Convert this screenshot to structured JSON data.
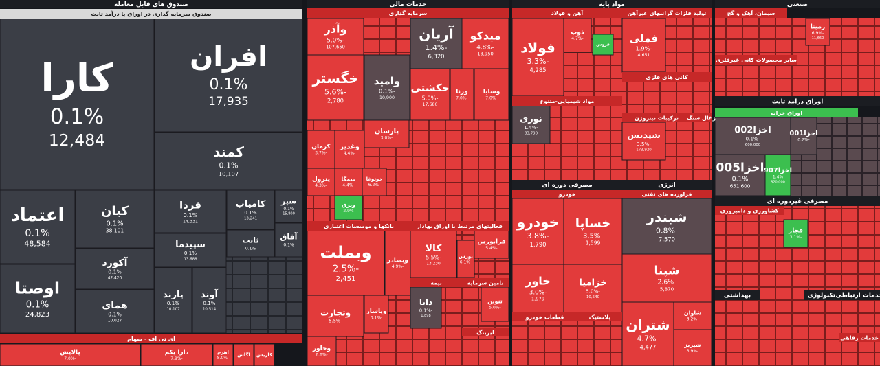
{
  "headers": [
    "صندوق های قابل معامله",
    "صندوق سرمایه گذاری در اوراق با درآمد ثابت",
    "ای تی اف - سهام",
    "خدمات مالی",
    "سرمایه گذاری",
    "بانکها و موسسات اعتباری",
    "فعالیتهای مرتبط با اوراق بهادار",
    "بیمه",
    "تامین سرمایه",
    "لیزینگ",
    "مواد پایه",
    "آهن و فولاد",
    "تولید فلزات گرانبهای غیرآهن",
    "کانی های فلزی",
    "مواد شیمیایی-متنوع",
    "ترکیبات نیتروژن",
    "زغال سنگ",
    "مصرفی دوره ای",
    "خودرو",
    "قطعات خودرو",
    "پلاستیک",
    "انرژی",
    "فراورده های نفتی",
    "صنعتی",
    "سیمان، آهک و گچ",
    "سایر محصولات کانی غیرفلزی",
    "اوراق درآمد ثابت",
    "اوراق خزانه",
    "مصرفی غیردوره ای",
    "کشاورزی و دامپروری",
    "بهداشتی",
    "تکنولوژی",
    "خدمات ارتباطی",
    "خدمات رفاهی"
  ],
  "tiles": [
    {
      "name": "کارا",
      "change": "0.1%",
      "value": "12,484"
    },
    {
      "name": "افران",
      "change": "0.1%",
      "value": "17,935"
    },
    {
      "name": "کمند",
      "change": "0.1%",
      "value": "10,107"
    },
    {
      "name": "اعتماد",
      "change": "0.1%",
      "value": "48,584"
    },
    {
      "name": "اوصتا",
      "change": "0.1%",
      "value": "24,823"
    },
    {
      "name": "کیان",
      "change": "0.1%",
      "value": "38,101"
    },
    {
      "name": "آکورد",
      "change": "0.1%",
      "value": "42,420"
    },
    {
      "name": "همای",
      "change": "0.1%",
      "value": "10,027"
    },
    {
      "name": "فردا",
      "change": "0.1%",
      "value": "14,331"
    },
    {
      "name": "سپیدما",
      "change": "0.1%",
      "value": "13,688"
    },
    {
      "name": "پارند",
      "change": "0.1%",
      "value": "10,107"
    },
    {
      "name": "آوند",
      "change": "0.1%",
      "value": "10,514"
    },
    {
      "name": "کامیاب",
      "change": "0.1%",
      "value": "13,241"
    },
    {
      "name": "سپر",
      "change": "0.1%",
      "value": "15,800"
    },
    {
      "name": "ثابت",
      "change": "0.1%"
    },
    {
      "name": "آفاق",
      "change": "0.1%"
    },
    {
      "name": "پالایش",
      "change": "-7.0%"
    },
    {
      "name": "دارا یکم",
      "change": "-7.9%"
    },
    {
      "name": "اهرم",
      "change": "-8.0%"
    },
    {
      "name": "آگاس"
    },
    {
      "name": "کاریس"
    },
    {
      "name": "وآذر",
      "change": "-5.0%",
      "value": "107,650"
    },
    {
      "name": "آریان",
      "change": "-1.4%",
      "value": "6,320"
    },
    {
      "name": "میدکو",
      "change": "-4.8%",
      "value": "13,950"
    },
    {
      "name": "خگستر",
      "change": "-5.6%",
      "value": "2,780"
    },
    {
      "name": "وامید",
      "change": "-0.1%",
      "value": "10,900"
    },
    {
      "name": "حکشتی",
      "change": "-5.0%",
      "value": "17,680"
    },
    {
      "name": "ورنا",
      "change": "-7.0%"
    },
    {
      "name": "وسایا",
      "change": "-7.0%"
    },
    {
      "name": "کرمان",
      "change": "-3.7%"
    },
    {
      "name": "وغدیر",
      "change": "-4.4%"
    },
    {
      "name": "پارسان",
      "change": "-3.0%"
    },
    {
      "name": "پترول",
      "change": "-4.3%"
    },
    {
      "name": "سمگا",
      "change": "-4.4%"
    },
    {
      "name": "خوتوغا",
      "change": "-6.2%"
    },
    {
      "name": "وبرق",
      "change": "2.9%"
    },
    {
      "name": "وبملت",
      "change": "-2.5%",
      "value": "2,451"
    },
    {
      "name": "وبصادر",
      "change": "-4.9%"
    },
    {
      "name": "وتجارت",
      "change": "-5.5%"
    },
    {
      "name": "وپاسار",
      "change": "-3.1%"
    },
    {
      "name": "وخاور",
      "change": "-6.6%"
    },
    {
      "name": "کالا",
      "change": "-5.5%",
      "value": "13,230"
    },
    {
      "name": "بورس",
      "change": "-6.1%"
    },
    {
      "name": "فرابورس",
      "change": "-5.4%"
    },
    {
      "name": "دانا",
      "change": "-0.1%",
      "value": "1,898"
    },
    {
      "name": "تنوین",
      "change": "-5.0%"
    },
    {
      "name": "فولاد",
      "change": "-3.3%",
      "value": "4,285"
    },
    {
      "name": "ذوب",
      "change": "-4.7%"
    },
    {
      "name": "فروس"
    },
    {
      "name": "فملی",
      "change": "-1.9%",
      "value": "4,651"
    },
    {
      "name": "نوری",
      "change": "-1.4%",
      "value": "83,790"
    },
    {
      "name": "شپدیس",
      "change": "-3.5%",
      "value": "173,920"
    },
    {
      "name": "خودرو",
      "change": "-3.8%",
      "value": "1,790"
    },
    {
      "name": "خساپا",
      "change": "-3.5%",
      "value": "1,599"
    },
    {
      "name": "خاور",
      "change": "-3.0%",
      "value": "1,979"
    },
    {
      "name": "خزامیا",
      "change": "-5.0%",
      "value": "10,540"
    },
    {
      "name": "شبندر",
      "change": "-0.8%",
      "value": "7,570"
    },
    {
      "name": "شپنا",
      "change": "-2.6%",
      "value": "5,870"
    },
    {
      "name": "شتران",
      "change": "-4.7%",
      "value": "4,477"
    },
    {
      "name": "شاوان",
      "change": "-3.2%"
    },
    {
      "name": "شبریز",
      "change": "-3.9%"
    },
    {
      "name": "اخزا002",
      "change": "-0.1%",
      "value": "600,000"
    },
    {
      "name": "اخزا001",
      "change": "-0.2%"
    },
    {
      "name": "اخزا005",
      "change": "0.1%",
      "value": "651,600"
    },
    {
      "name": "اخزا907",
      "change": "1.4%",
      "value": "820,000"
    },
    {
      "name": "قچار",
      "change": "-3.1%"
    },
    {
      "name": "رمپنا",
      "change": "-6.9%",
      "value": "11,660"
    }
  ]
}
